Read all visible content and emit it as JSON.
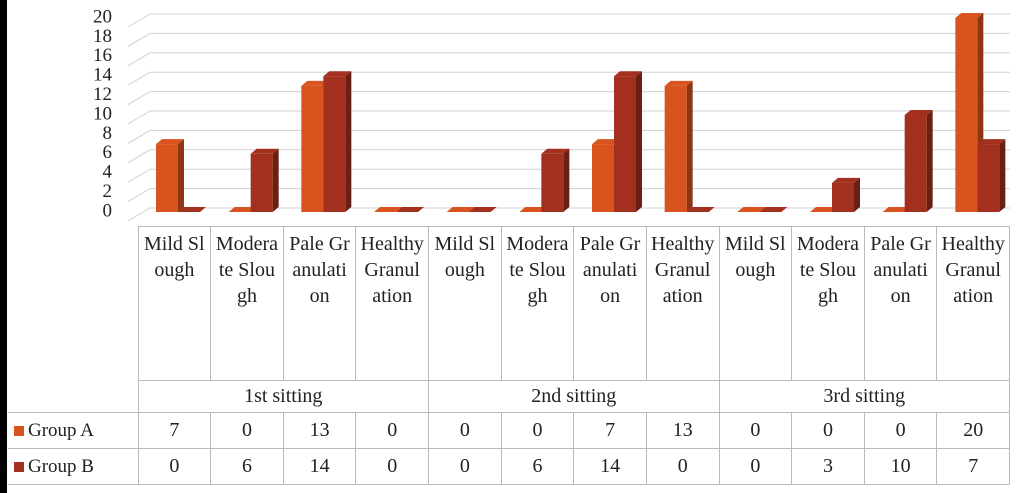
{
  "chart_data": {
    "type": "bar",
    "categories": [
      "Mild Slough",
      "Moderate Slough",
      "Pale Granulation",
      "Healthy Granulation",
      "Mild Slough",
      "Moderate Slough",
      "Pale Granulation",
      "Healthy Granulation",
      "Mild Slough",
      "Moderate Slough",
      "Pale Granulation",
      "Healthy Granulation"
    ],
    "group_labels": [
      "1st sitting",
      "2nd sitting",
      "3rd sitting"
    ],
    "series": [
      {
        "name": "Group A",
        "color": "#d9531e",
        "values": [
          7,
          0,
          13,
          0,
          0,
          0,
          7,
          13,
          0,
          0,
          0,
          20
        ]
      },
      {
        "name": "Group B",
        "color": "#a3301e",
        "values": [
          0,
          6,
          14,
          0,
          0,
          6,
          14,
          0,
          0,
          3,
          10,
          7
        ]
      }
    ],
    "ylim": [
      0,
      20
    ],
    "yticks": [
      0,
      2,
      4,
      6,
      8,
      10,
      12,
      14,
      16,
      18,
      20
    ],
    "grid": true
  }
}
